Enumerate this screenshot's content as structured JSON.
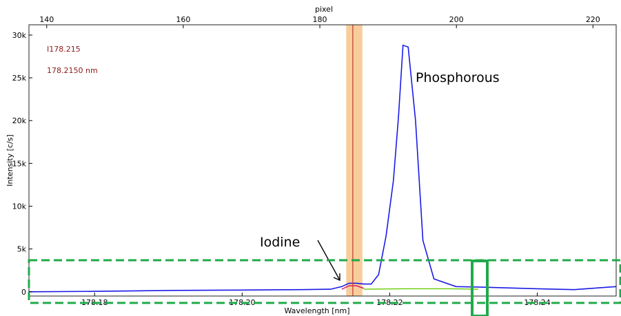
{
  "chart_data": {
    "type": "line",
    "title": "",
    "top_xlabel": "pixel",
    "xlabel": "Wavelength [nm]",
    "ylabel": "Intensity [c/s]",
    "xlim": [
      178.1711,
      178.2507
    ],
    "ylim": [
      -500,
      31200
    ],
    "top_axis_range": [
      137.4,
      223.4
    ],
    "top_ticks": [
      "140",
      "160",
      "180",
      "200",
      "220"
    ],
    "top_tick_values": [
      140,
      160,
      180,
      200,
      220
    ],
    "x_ticks": [
      "178.18",
      "178.20",
      "178.22",
      "178.24"
    ],
    "x_tick_values": [
      178.18,
      178.2,
      178.22,
      178.24
    ],
    "y_ticks": [
      "0",
      "5k",
      "10k",
      "15k",
      "20k",
      "25k",
      "30k"
    ],
    "y_tick_values": [
      0,
      5000,
      10000,
      15000,
      20000,
      25000,
      30000
    ],
    "grid": false,
    "line_label": "I178.215",
    "line_label2": "178.2150 nm",
    "selected_line_nm": 178.215,
    "band_nm": [
      178.2141,
      178.2163
    ],
    "series": [
      {
        "color": "#1a1ae6",
        "x": [
          178.1711,
          178.18,
          178.19,
          178.2,
          178.208,
          178.212,
          178.2135,
          178.2145,
          178.2155,
          178.2165,
          178.2175,
          178.2185,
          178.2195,
          178.2205,
          178.2212,
          178.2218,
          178.2225,
          178.2235,
          178.2245,
          178.226,
          178.229,
          178.232,
          178.236,
          178.24,
          178.245,
          178.2507
        ],
        "y": [
          0,
          50,
          150,
          200,
          250,
          300,
          600,
          1000,
          1000,
          900,
          900,
          2000,
          6500,
          13000,
          20500,
          28800,
          28600,
          20000,
          6000,
          1500,
          600,
          550,
          450,
          350,
          250,
          600
        ]
      },
      {
        "color": "#66cc00",
        "x": [
          178.2165,
          178.222,
          178.228,
          178.232
        ],
        "y": [
          300,
          350,
          350,
          300
        ]
      },
      {
        "color": "#d4145a",
        "x": [
          178.2135,
          178.2145,
          178.2155,
          178.2165
        ],
        "y": [
          300,
          700,
          700,
          400
        ]
      }
    ],
    "annotations": [
      {
        "text": "Iodine"
      },
      {
        "text": "Phosphorous"
      }
    ]
  }
}
